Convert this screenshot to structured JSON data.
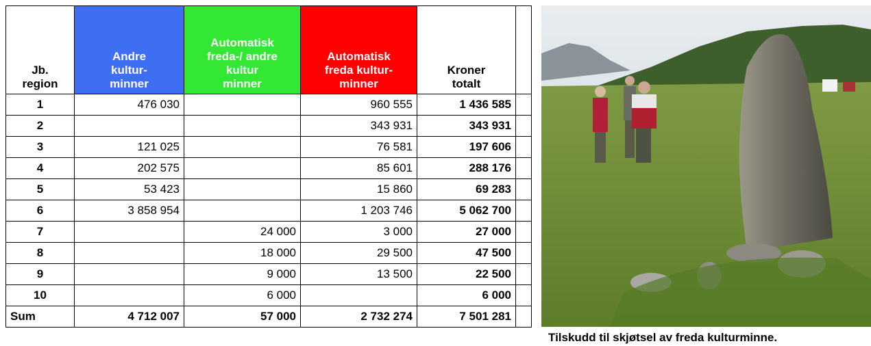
{
  "table": {
    "headers": [
      [
        "Jb.",
        "region"
      ],
      [
        "Andre",
        "kultur-",
        "minner"
      ],
      [
        "Automatisk",
        "freda-/ andre",
        "kultur",
        "minner"
      ],
      [
        "Automatisk",
        "freda kultur-",
        "minner"
      ],
      [
        "Kroner",
        "totalt"
      ]
    ],
    "rows": [
      [
        "1",
        "476 030",
        null,
        "960 555",
        "1 436 585"
      ],
      [
        "2",
        null,
        null,
        "343 931",
        "343 931"
      ],
      [
        "3",
        "121 025",
        null,
        "76 581",
        "197 606"
      ],
      [
        "4",
        "202 575",
        null,
        "85 601",
        "288 176"
      ],
      [
        "5",
        "53 423",
        null,
        "15 860",
        "69 283"
      ],
      [
        "6",
        "3 858 954",
        null,
        "1 203 746",
        "5 062 700"
      ],
      [
        "7",
        null,
        "24 000",
        "3 000",
        "27 000"
      ],
      [
        "8",
        null,
        "18 000",
        "29 500",
        "47 500"
      ],
      [
        "9",
        null,
        "9 000",
        "13 500",
        "22 500"
      ],
      [
        "10",
        null,
        "6 000",
        null,
        "6 000"
      ],
      [
        "Sum",
        "4 712 007",
        "57 000",
        "2 732 274",
        "7 501 281"
      ]
    ]
  },
  "photo": {
    "caption": "Tilskudd til skjøtsel av freda kulturminne."
  }
}
